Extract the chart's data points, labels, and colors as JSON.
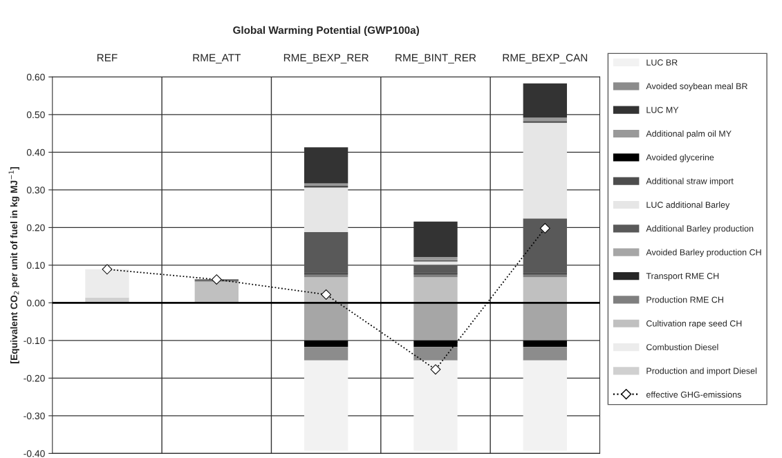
{
  "chart_data": {
    "type": "bar",
    "stacked": true,
    "title": "Global Warming Potential (GWP100a)",
    "ylabel": "[Equivalent CO$_{2}$ per unit of fuel in kg MJ$^{−1}$]",
    "categories": [
      "REF",
      "RME_ATT",
      "RME_BEXP_RER",
      "RME_BINT_RER",
      "RME_BEXP_CAN"
    ],
    "ylim": [
      -0.4,
      0.6
    ],
    "yticks": [
      {
        "value": -0.4,
        "label": "-0.40"
      },
      {
        "value": -0.3,
        "label": "-0.30"
      },
      {
        "value": -0.2,
        "label": "-0.20"
      },
      {
        "value": -0.1,
        "label": "-0.10"
      },
      {
        "value": 0,
        "label": "0.00"
      },
      {
        "value": 0.1,
        "label": "0.10"
      },
      {
        "value": 0.2,
        "label": "0.20"
      },
      {
        "value": 0.3,
        "label": "0.30"
      },
      {
        "value": 0.4,
        "label": "0.40"
      },
      {
        "value": 0.5,
        "label": "0.50"
      },
      {
        "value": 0.6,
        "label": "0.60"
      }
    ],
    "grid": true,
    "legend": "right",
    "series": [
      {
        "name": "Production and import Diesel",
        "color": "#d0d0d0",
        "values": [
          0.014,
          null,
          null,
          null,
          null
        ]
      },
      {
        "name": "Combustion Diesel",
        "color": "#ececec",
        "values": [
          0.075,
          null,
          null,
          null,
          null
        ]
      },
      {
        "name": "Cultivation rape seed CH",
        "color": "#c0c0c0",
        "values": [
          null,
          0.056,
          0.068,
          0.068,
          0.068
        ]
      },
      {
        "name": "Production RME CH",
        "color": "#7f7f7f",
        "values": [
          null,
          0.004,
          0.008,
          0.008,
          0.008
        ]
      },
      {
        "name": "Transport RME CH",
        "color": "#262626",
        "values": [
          null,
          0.002,
          0.002,
          0.002,
          0.002
        ]
      },
      {
        "name": "Avoided Barley production CH",
        "color": "#a6a6a6",
        "values": [
          null,
          null,
          -0.1,
          -0.1,
          -0.1
        ]
      },
      {
        "name": "Additional Barley production",
        "color": "#595959",
        "values": [
          null,
          null,
          0.11,
          0.023,
          0.146
        ]
      },
      {
        "name": "LUC additional Barley",
        "color": "#e6e6e6",
        "values": [
          null,
          null,
          0.118,
          0.009,
          0.254
        ]
      },
      {
        "name": "Additional straw import",
        "color": "#4d4d4d",
        "values": [
          null,
          null,
          0.005,
          0.003,
          0.005
        ]
      },
      {
        "name": "Avoided glycerine",
        "color": "#000000",
        "values": [
          null,
          null,
          -0.017,
          -0.017,
          -0.017
        ]
      },
      {
        "name": "Additional palm oil MY",
        "color": "#999999",
        "values": [
          null,
          null,
          0.006,
          0.009,
          0.009
        ]
      },
      {
        "name": "LUC MY",
        "color": "#333333",
        "values": [
          null,
          null,
          0.096,
          0.094,
          0.091
        ]
      },
      {
        "name": "Avoided soybean meal BR",
        "color": "#8c8c8c",
        "values": [
          null,
          null,
          -0.036,
          -0.036,
          -0.036
        ]
      },
      {
        "name": "LUC BR",
        "color": "#f2f2f2",
        "values": [
          null,
          null,
          -0.24,
          -0.24,
          -0.24
        ]
      },
      {
        "name": "effective GHG-emissions",
        "type": "line",
        "color": "#000000",
        "marker": "diamond",
        "line_style": "dotted",
        "values": [
          0.089,
          0.062,
          0.022,
          -0.177,
          0.198
        ]
      }
    ]
  }
}
